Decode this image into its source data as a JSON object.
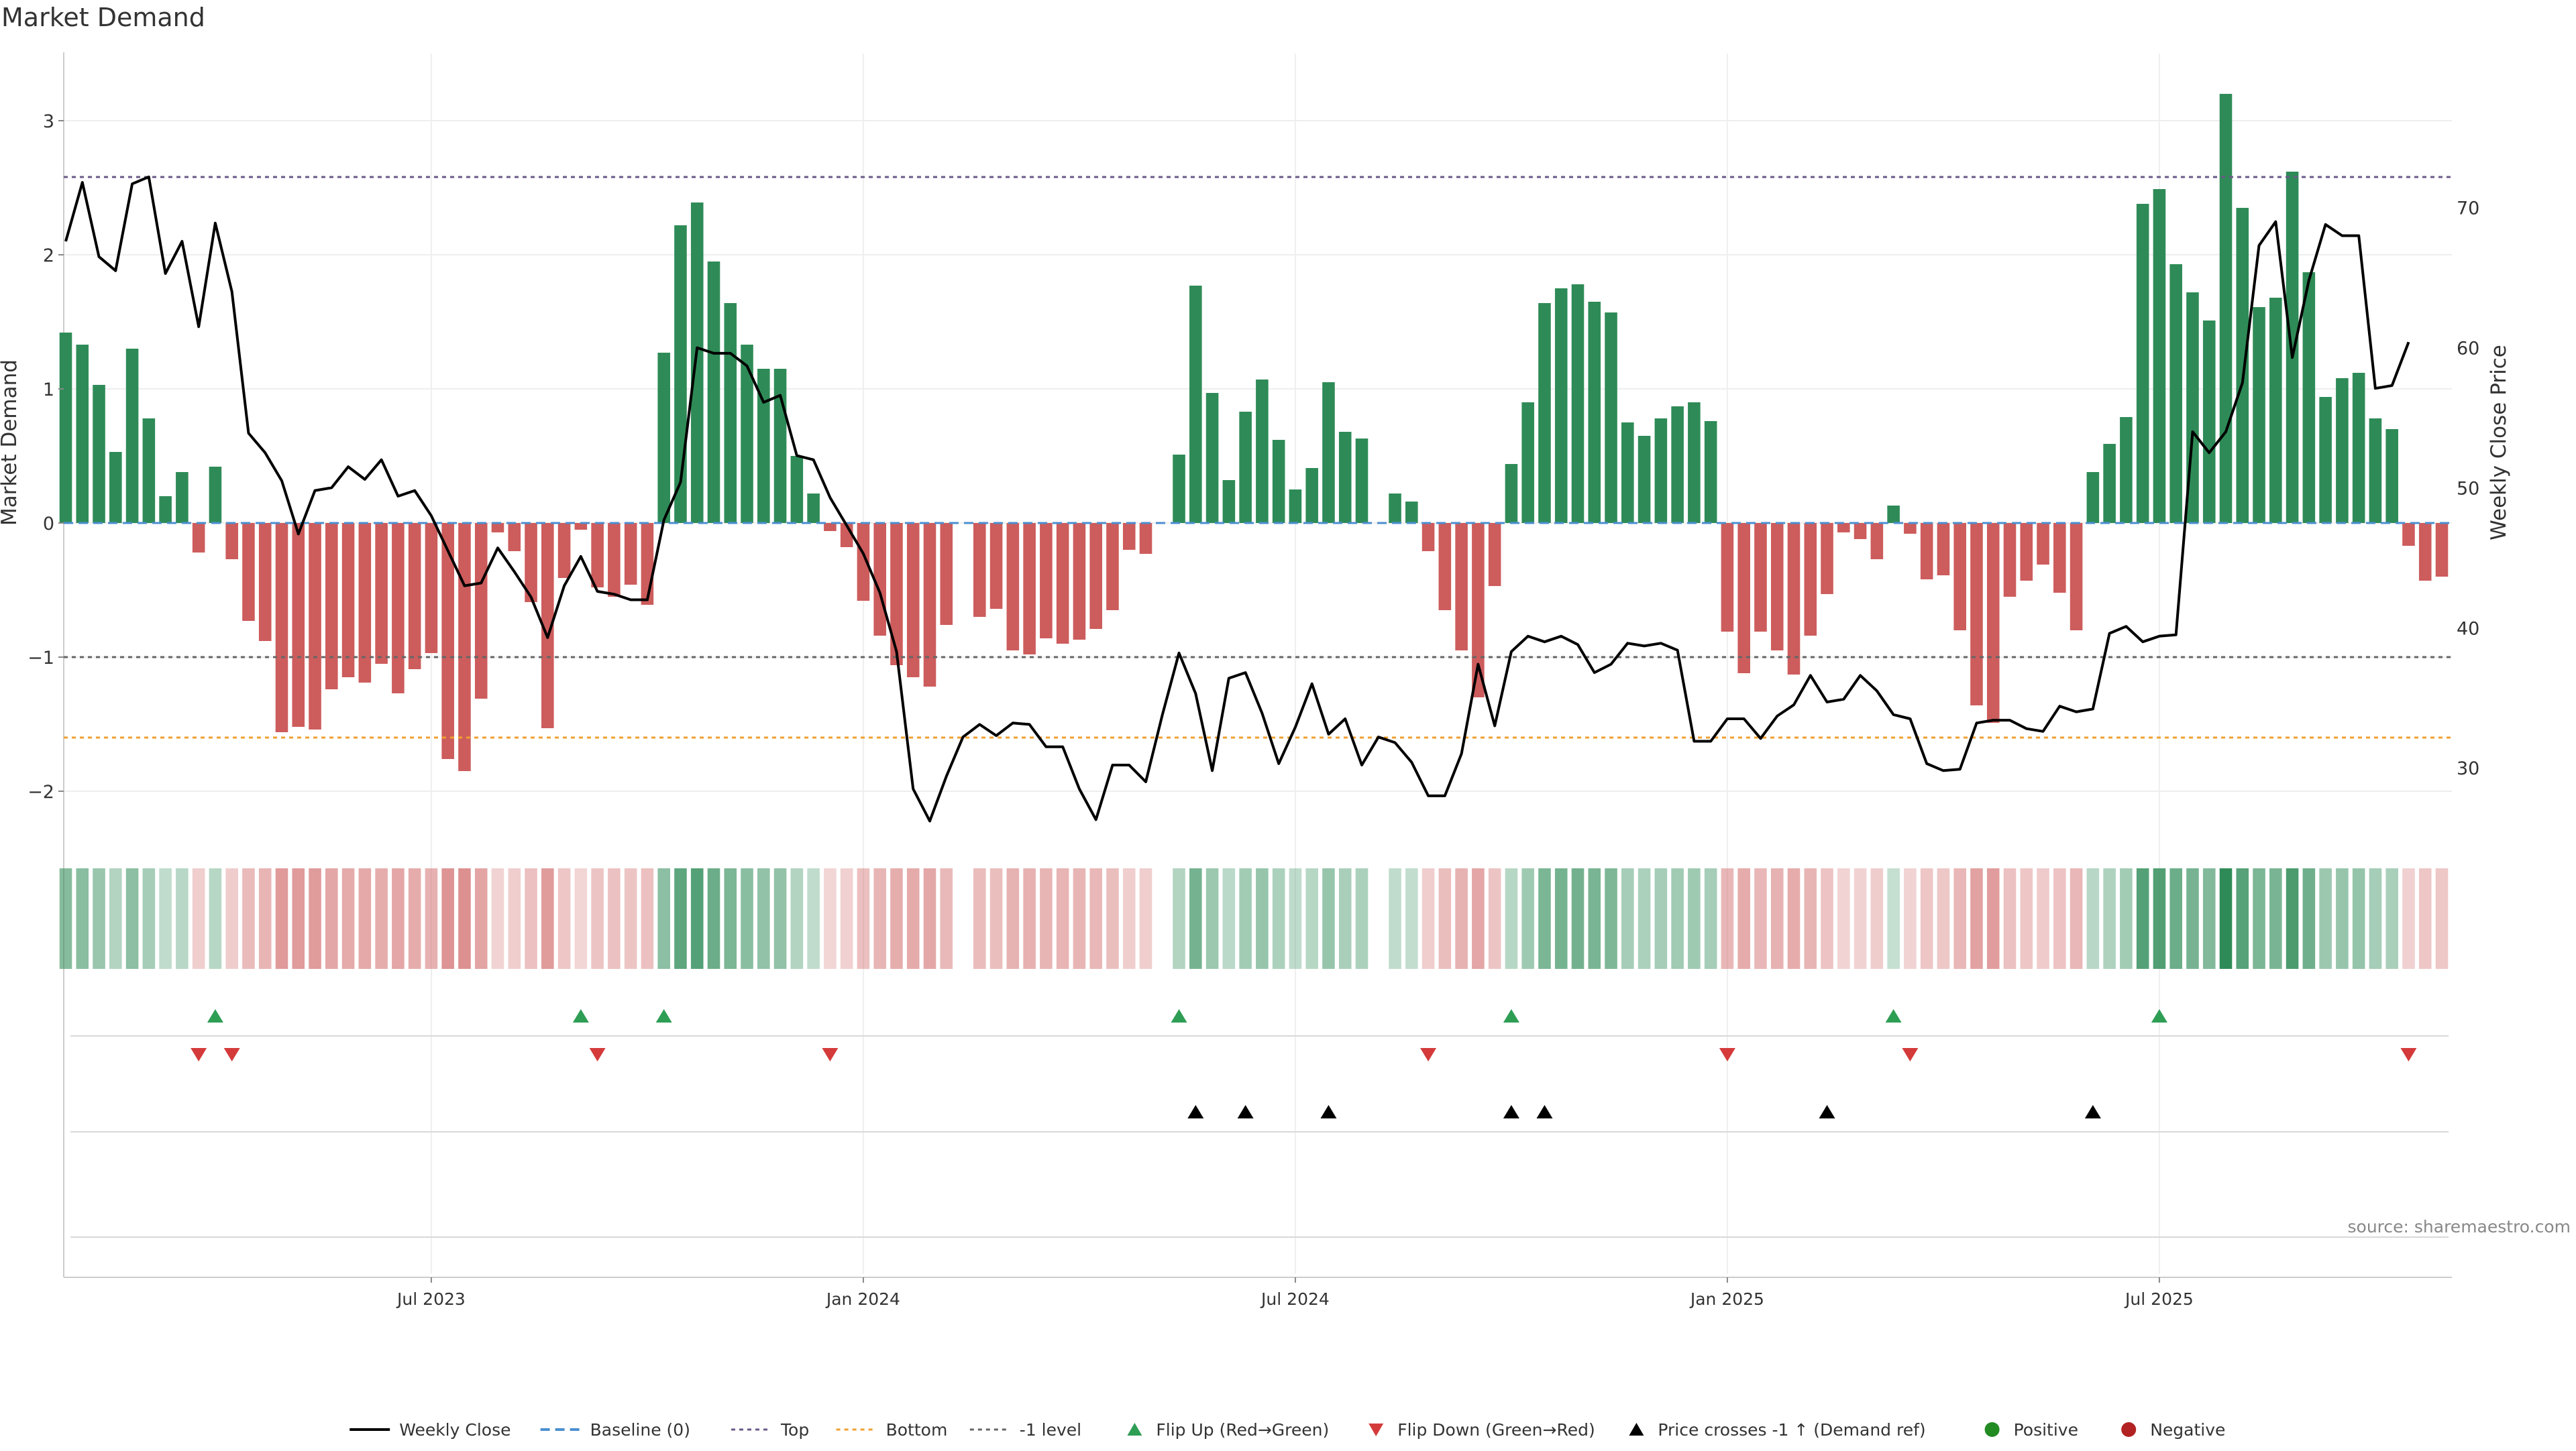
{
  "title": "Market Demand",
  "source": "source: sharemaestro.com",
  "chart_data": {
    "type": "bar",
    "title": "Market Demand",
    "ylabel": "Market Demand",
    "y2label": "Weekly Close Price",
    "ylim": [
      -2.4,
      3.5
    ],
    "y2lim": [
      24.5,
      81
    ],
    "yticks": [
      "−2",
      "−1",
      "0",
      "1",
      "2",
      "3"
    ],
    "y2ticks": [
      "30",
      "40",
      "50",
      "60",
      "70"
    ],
    "xticks": [
      {
        "label": "Jul 2023",
        "week": 22
      },
      {
        "label": "Jan 2024",
        "week": 48
      },
      {
        "label": "Jul 2024",
        "week": 74
      },
      {
        "label": "Jan 2025",
        "week": 100
      },
      {
        "label": "Jul 2025",
        "week": 126
      }
    ],
    "levels": {
      "top": 2.58,
      "bottom": -1.6,
      "minus_one": -1
    },
    "demand": [
      1.42,
      1.33,
      1.03,
      0.53,
      1.3,
      0.78,
      0.2,
      0.38,
      -0.22,
      0.42,
      -0.27,
      -0.73,
      -0.88,
      -1.56,
      -1.52,
      -1.54,
      -1.24,
      -1.15,
      -1.19,
      -1.05,
      -1.27,
      -1.09,
      -0.97,
      -1.76,
      -1.85,
      -1.31,
      -0.07,
      -0.21,
      -0.59,
      -1.53,
      -0.41,
      -0.05,
      -0.48,
      -0.55,
      -0.46,
      -0.61,
      1.27,
      2.22,
      2.39,
      1.95,
      1.64,
      1.33,
      1.15,
      1.15,
      0.5,
      0.22,
      -0.06,
      -0.18,
      -0.58,
      -0.84,
      -1.06,
      -1.15,
      -1.22,
      -0.76,
      0,
      -0.7,
      -0.64,
      -0.95,
      -0.98,
      -0.86,
      -0.9,
      -0.87,
      -0.79,
      -0.65,
      -0.2,
      -0.23,
      0,
      0.51,
      1.77,
      0.97,
      0.32,
      0.83,
      1.07,
      0.62,
      0.25,
      0.41,
      1.05,
      0.68,
      0.63,
      0,
      0.22,
      0.16,
      -0.21,
      -0.65,
      -0.95,
      -1.3,
      -0.47,
      0.44,
      0.9,
      1.64,
      1.75,
      1.78,
      1.65,
      1.57,
      0.75,
      0.65,
      0.78,
      0.87,
      0.9,
      0.76,
      -0.81,
      -1.12,
      -0.81,
      -0.95,
      -1.13,
      -0.84,
      -0.53,
      -0.07,
      -0.12,
      -0.27,
      0.13,
      -0.08,
      -0.42,
      -0.39,
      -0.8,
      -1.36,
      -1.49,
      -0.55,
      -0.43,
      -0.31,
      -0.52,
      -0.8,
      0.38,
      0.59,
      0.79,
      2.38,
      2.49,
      1.93,
      1.72,
      1.51,
      3.2,
      2.35,
      1.61,
      1.68,
      2.62,
      1.87,
      0.94,
      1.08,
      1.12,
      0.78,
      0.7,
      -0.17,
      -0.43,
      -0.4
    ],
    "close": [
      67.6,
      71.8,
      66.5,
      65.5,
      71.7,
      72.2,
      65.3,
      67.6,
      61.5,
      68.9,
      64,
      53.9,
      52.5,
      50.5,
      46.7,
      49.8,
      50,
      51.5,
      50.6,
      52,
      49.4,
      49.8,
      48,
      45.5,
      43,
      43.2,
      45.7,
      44,
      42.2,
      39.3,
      43,
      45.1,
      42.6,
      42.4,
      42,
      42,
      47.7,
      50.4,
      60,
      59.6,
      59.6,
      58.7,
      56.1,
      56.6,
      52.3,
      52,
      49.3,
      47.3,
      45.3,
      42.5,
      38.3,
      28.5,
      26.2,
      29.4,
      32.2,
      33.1,
      32.3,
      33.2,
      33.1,
      31.5,
      31.5,
      28.5,
      26.3,
      30.2,
      30.2,
      29,
      33.8,
      38.2,
      35.3,
      29.8,
      36.4,
      36.8,
      33.9,
      30.3,
      32.9,
      36,
      32.4,
      33.5,
      30.2,
      32.2,
      31.8,
      30.4,
      28,
      28,
      31,
      37.4,
      33,
      38.3,
      39.4,
      39,
      39.4,
      38.8,
      36.8,
      37.4,
      38.9,
      38.7,
      38.9,
      38.4,
      31.9,
      31.9,
      33.5,
      33.5,
      32.1,
      33.7,
      34.5,
      36.6,
      34.7,
      34.9,
      36.6,
      35.5,
      33.8,
      33.5,
      30.3,
      29.8,
      29.9,
      33.2,
      33.4,
      33.4,
      32.8,
      32.6,
      34.4,
      34,
      34.2,
      39.6,
      40.1,
      39,
      39.4,
      39.5,
      54,
      52.5,
      54,
      57.5,
      67.3,
      69,
      59.3,
      64.8,
      68.8,
      68,
      68,
      57.1,
      57.3,
      60.4
    ],
    "flip_up_weeks": [
      9,
      31,
      36,
      67,
      87,
      110,
      126
    ],
    "flip_down_weeks": [
      8,
      10,
      32,
      46,
      82,
      100,
      111,
      141
    ],
    "price_cross_weeks": [
      68,
      71,
      76,
      87,
      89,
      106,
      122
    ],
    "legend": [
      {
        "key": "close",
        "label": "Weekly Close"
      },
      {
        "key": "baseline",
        "label": "Baseline (0)"
      },
      {
        "key": "top",
        "label": "Top"
      },
      {
        "key": "bottom",
        "label": "Bottom"
      },
      {
        "key": "minus_one",
        "label": "-1 level"
      },
      {
        "key": "flip_up",
        "label": "Flip Up (Red→Green)"
      },
      {
        "key": "flip_down",
        "label": "Flip Down (Green→Red)"
      },
      {
        "key": "price_cross",
        "label": "Price crosses -1 ↑ (Demand ref)"
      },
      {
        "key": "positive",
        "label": "Positive"
      },
      {
        "key": "negative",
        "label": "Negative"
      }
    ]
  },
  "colors": {
    "positive_bar": "#2e8b57",
    "negative_bar": "#cd5c5c",
    "price_line": "#000000",
    "baseline": "#4c8fd0",
    "top_level": "#6a5a8a",
    "bottom_level": "#f0a030",
    "minus_one_level": "#666666",
    "flip_up": "#2e9e55",
    "flip_down": "#d43a3a",
    "price_cross": "#000000",
    "positive_dot": "#228b22",
    "negative_dot": "#b22222"
  }
}
